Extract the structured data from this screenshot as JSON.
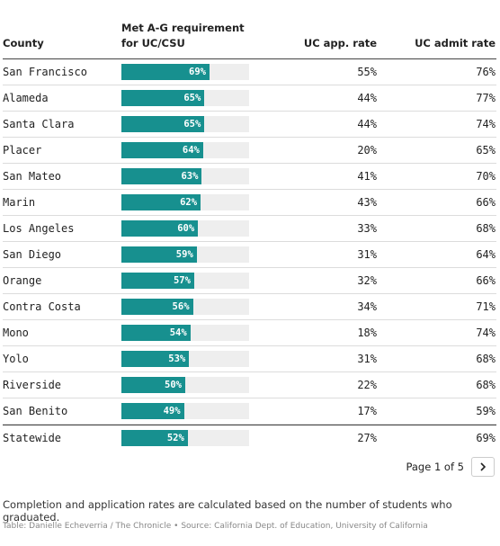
{
  "chart_data": {
    "type": "table",
    "columns": [
      "County",
      "Met A-G requirement for UC/CSU",
      "UC app. rate",
      "UC admit rate"
    ],
    "headers": {
      "county": "County",
      "metag_line1": "Met A-G requirement",
      "metag_line2": "for UC/CSU",
      "app": "UC app. rate",
      "admit": "UC admit rate"
    },
    "bar_max": 100,
    "bar_color": "#17908f",
    "track_color": "#eeeeee",
    "rows": [
      {
        "county": "San Francisco",
        "metag": 69,
        "metag_label": "69%",
        "app": "55%",
        "admit": "76%"
      },
      {
        "county": "Alameda",
        "metag": 65,
        "metag_label": "65%",
        "app": "44%",
        "admit": "77%"
      },
      {
        "county": "Santa Clara",
        "metag": 65,
        "metag_label": "65%",
        "app": "44%",
        "admit": "74%"
      },
      {
        "county": "Placer",
        "metag": 64,
        "metag_label": "64%",
        "app": "20%",
        "admit": "65%"
      },
      {
        "county": "San Mateo",
        "metag": 63,
        "metag_label": "63%",
        "app": "41%",
        "admit": "70%"
      },
      {
        "county": "Marin",
        "metag": 62,
        "metag_label": "62%",
        "app": "43%",
        "admit": "66%"
      },
      {
        "county": "Los Angeles",
        "metag": 60,
        "metag_label": "60%",
        "app": "33%",
        "admit": "68%"
      },
      {
        "county": "San Diego",
        "metag": 59,
        "metag_label": "59%",
        "app": "31%",
        "admit": "64%"
      },
      {
        "county": "Orange",
        "metag": 57,
        "metag_label": "57%",
        "app": "32%",
        "admit": "66%"
      },
      {
        "county": "Contra Costa",
        "metag": 56,
        "metag_label": "56%",
        "app": "34%",
        "admit": "71%"
      },
      {
        "county": "Mono",
        "metag": 54,
        "metag_label": "54%",
        "app": "18%",
        "admit": "74%"
      },
      {
        "county": "Yolo",
        "metag": 53,
        "metag_label": "53%",
        "app": "31%",
        "admit": "68%"
      },
      {
        "county": "Riverside",
        "metag": 50,
        "metag_label": "50%",
        "app": "22%",
        "admit": "68%"
      },
      {
        "county": "San Benito",
        "metag": 49,
        "metag_label": "49%",
        "app": "17%",
        "admit": "59%"
      },
      {
        "county": "Statewide",
        "metag": 52,
        "metag_label": "52%",
        "app": "27%",
        "admit": "69%"
      }
    ]
  },
  "pagination": {
    "label": "Page 1 of 5",
    "next_icon": "chevron-right-icon"
  },
  "footnote": "Completion and application rates are calculated based on the number of students who graduated.",
  "source": "Table: Danielle Echeverria / The Chronicle • Source: California Dept. of Education, University of California"
}
